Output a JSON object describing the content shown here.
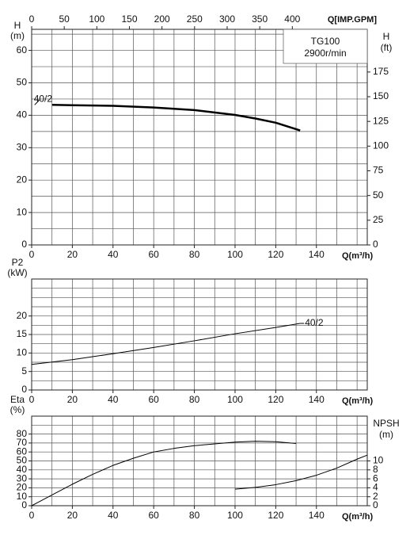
{
  "chart_data": [
    {
      "type": "line",
      "title": "TG100",
      "subtitle": "2900r/min",
      "xlabel": "Q(m³/h)",
      "x2label": "Q[IMP.GPM]",
      "ylabel": [
        "H",
        "(m)"
      ],
      "y2label": [
        "H",
        "(ft)"
      ],
      "xlim": [
        0,
        165
      ],
      "xticks": [
        0,
        20,
        40,
        60,
        80,
        100,
        120,
        140
      ],
      "x2lim": [
        0,
        515
      ],
      "x2ticks": [
        0,
        50,
        100,
        150,
        200,
        250,
        300,
        350,
        400
      ],
      "ylim": [
        0,
        66.5
      ],
      "yticks": [
        0,
        10,
        20,
        30,
        40,
        50,
        60
      ],
      "y2lim": [
        0,
        218.2
      ],
      "y2ticks": [
        0,
        25,
        50,
        75,
        100,
        125,
        150,
        175
      ],
      "grid": true,
      "x_grid_lines": [
        10,
        20,
        30,
        40,
        50,
        60,
        70,
        80,
        90,
        100,
        110,
        120,
        130,
        140,
        150,
        160
      ],
      "y_grid_lines": [
        5,
        10,
        15,
        20,
        25,
        30,
        35,
        40,
        45,
        50,
        55,
        60,
        65
      ],
      "series": [
        {
          "name": "40/2",
          "color": "#000000",
          "line_width": 2.5,
          "label_at": "start",
          "x": [
            10,
            20,
            40,
            60,
            80,
            100,
            110,
            120,
            132
          ],
          "values": [
            43.2,
            43.1,
            42.9,
            42.4,
            41.6,
            40.1,
            39,
            37.7,
            35.3
          ]
        }
      ]
    },
    {
      "type": "line",
      "xlabel": "Q(m³/h)",
      "ylabel": [
        "P2",
        "(kW)"
      ],
      "xlim": [
        0,
        165
      ],
      "xticks": [
        0,
        20,
        40,
        60,
        80,
        100,
        120,
        140
      ],
      "ylim": [
        0,
        30
      ],
      "yticks": [
        0,
        5,
        10,
        15,
        20
      ],
      "grid": true,
      "x_grid_lines": [
        10,
        20,
        30,
        40,
        50,
        60,
        70,
        80,
        90,
        100,
        110,
        120,
        130,
        140,
        150,
        160
      ],
      "y_grid_lines": [
        2.5,
        5,
        7.5,
        10,
        12.5,
        15,
        17.5,
        20,
        22.5,
        25,
        27.5
      ],
      "series": [
        {
          "name": "40/2",
          "color": "#000000",
          "line_width": 1,
          "label_at": "end",
          "x": [
            0,
            20,
            40,
            60,
            80,
            100,
            120,
            132
          ],
          "values": [
            6.9,
            8.2,
            9.8,
            11.5,
            13.3,
            15.2,
            16.9,
            18
          ]
        }
      ]
    },
    {
      "type": "line",
      "xlabel": "Q(m³/h)",
      "ylabel": [
        "Eta",
        "(%)"
      ],
      "y2label": [
        "NPSH",
        "(m)"
      ],
      "xlim": [
        0,
        165
      ],
      "xticks": [
        0,
        20,
        40,
        60,
        80,
        100,
        120,
        140
      ],
      "ylim": [
        0,
        100
      ],
      "yticks": [
        0,
        10,
        20,
        30,
        40,
        50,
        60,
        70,
        80
      ],
      "y2lim": [
        0,
        20
      ],
      "y2ticks": [
        0,
        2,
        4,
        6,
        8,
        10
      ],
      "grid": true,
      "x_grid_lines": [
        10,
        20,
        30,
        40,
        50,
        60,
        70,
        80,
        90,
        100,
        110,
        120,
        130,
        140,
        150,
        160
      ],
      "y_grid_lines": [
        10,
        20,
        30,
        40,
        50,
        60,
        70,
        80,
        90
      ],
      "series": [
        {
          "color": "#000000",
          "line_width": 1,
          "x": [
            0,
            10,
            20,
            30,
            40,
            50,
            60,
            70,
            80,
            90,
            100,
            110,
            120,
            130
          ],
          "values": [
            0,
            12,
            24,
            35,
            45,
            53,
            60,
            64,
            67,
            69,
            71,
            72,
            71.5,
            69.5
          ]
        },
        {
          "color": "#000000",
          "line_width": 1,
          "axis": "y2",
          "x": [
            100,
            110,
            120,
            130,
            140,
            150,
            160,
            165
          ],
          "values": [
            3.7,
            4.1,
            4.7,
            5.6,
            6.8,
            8.4,
            10.4,
            11.3
          ]
        }
      ]
    }
  ]
}
